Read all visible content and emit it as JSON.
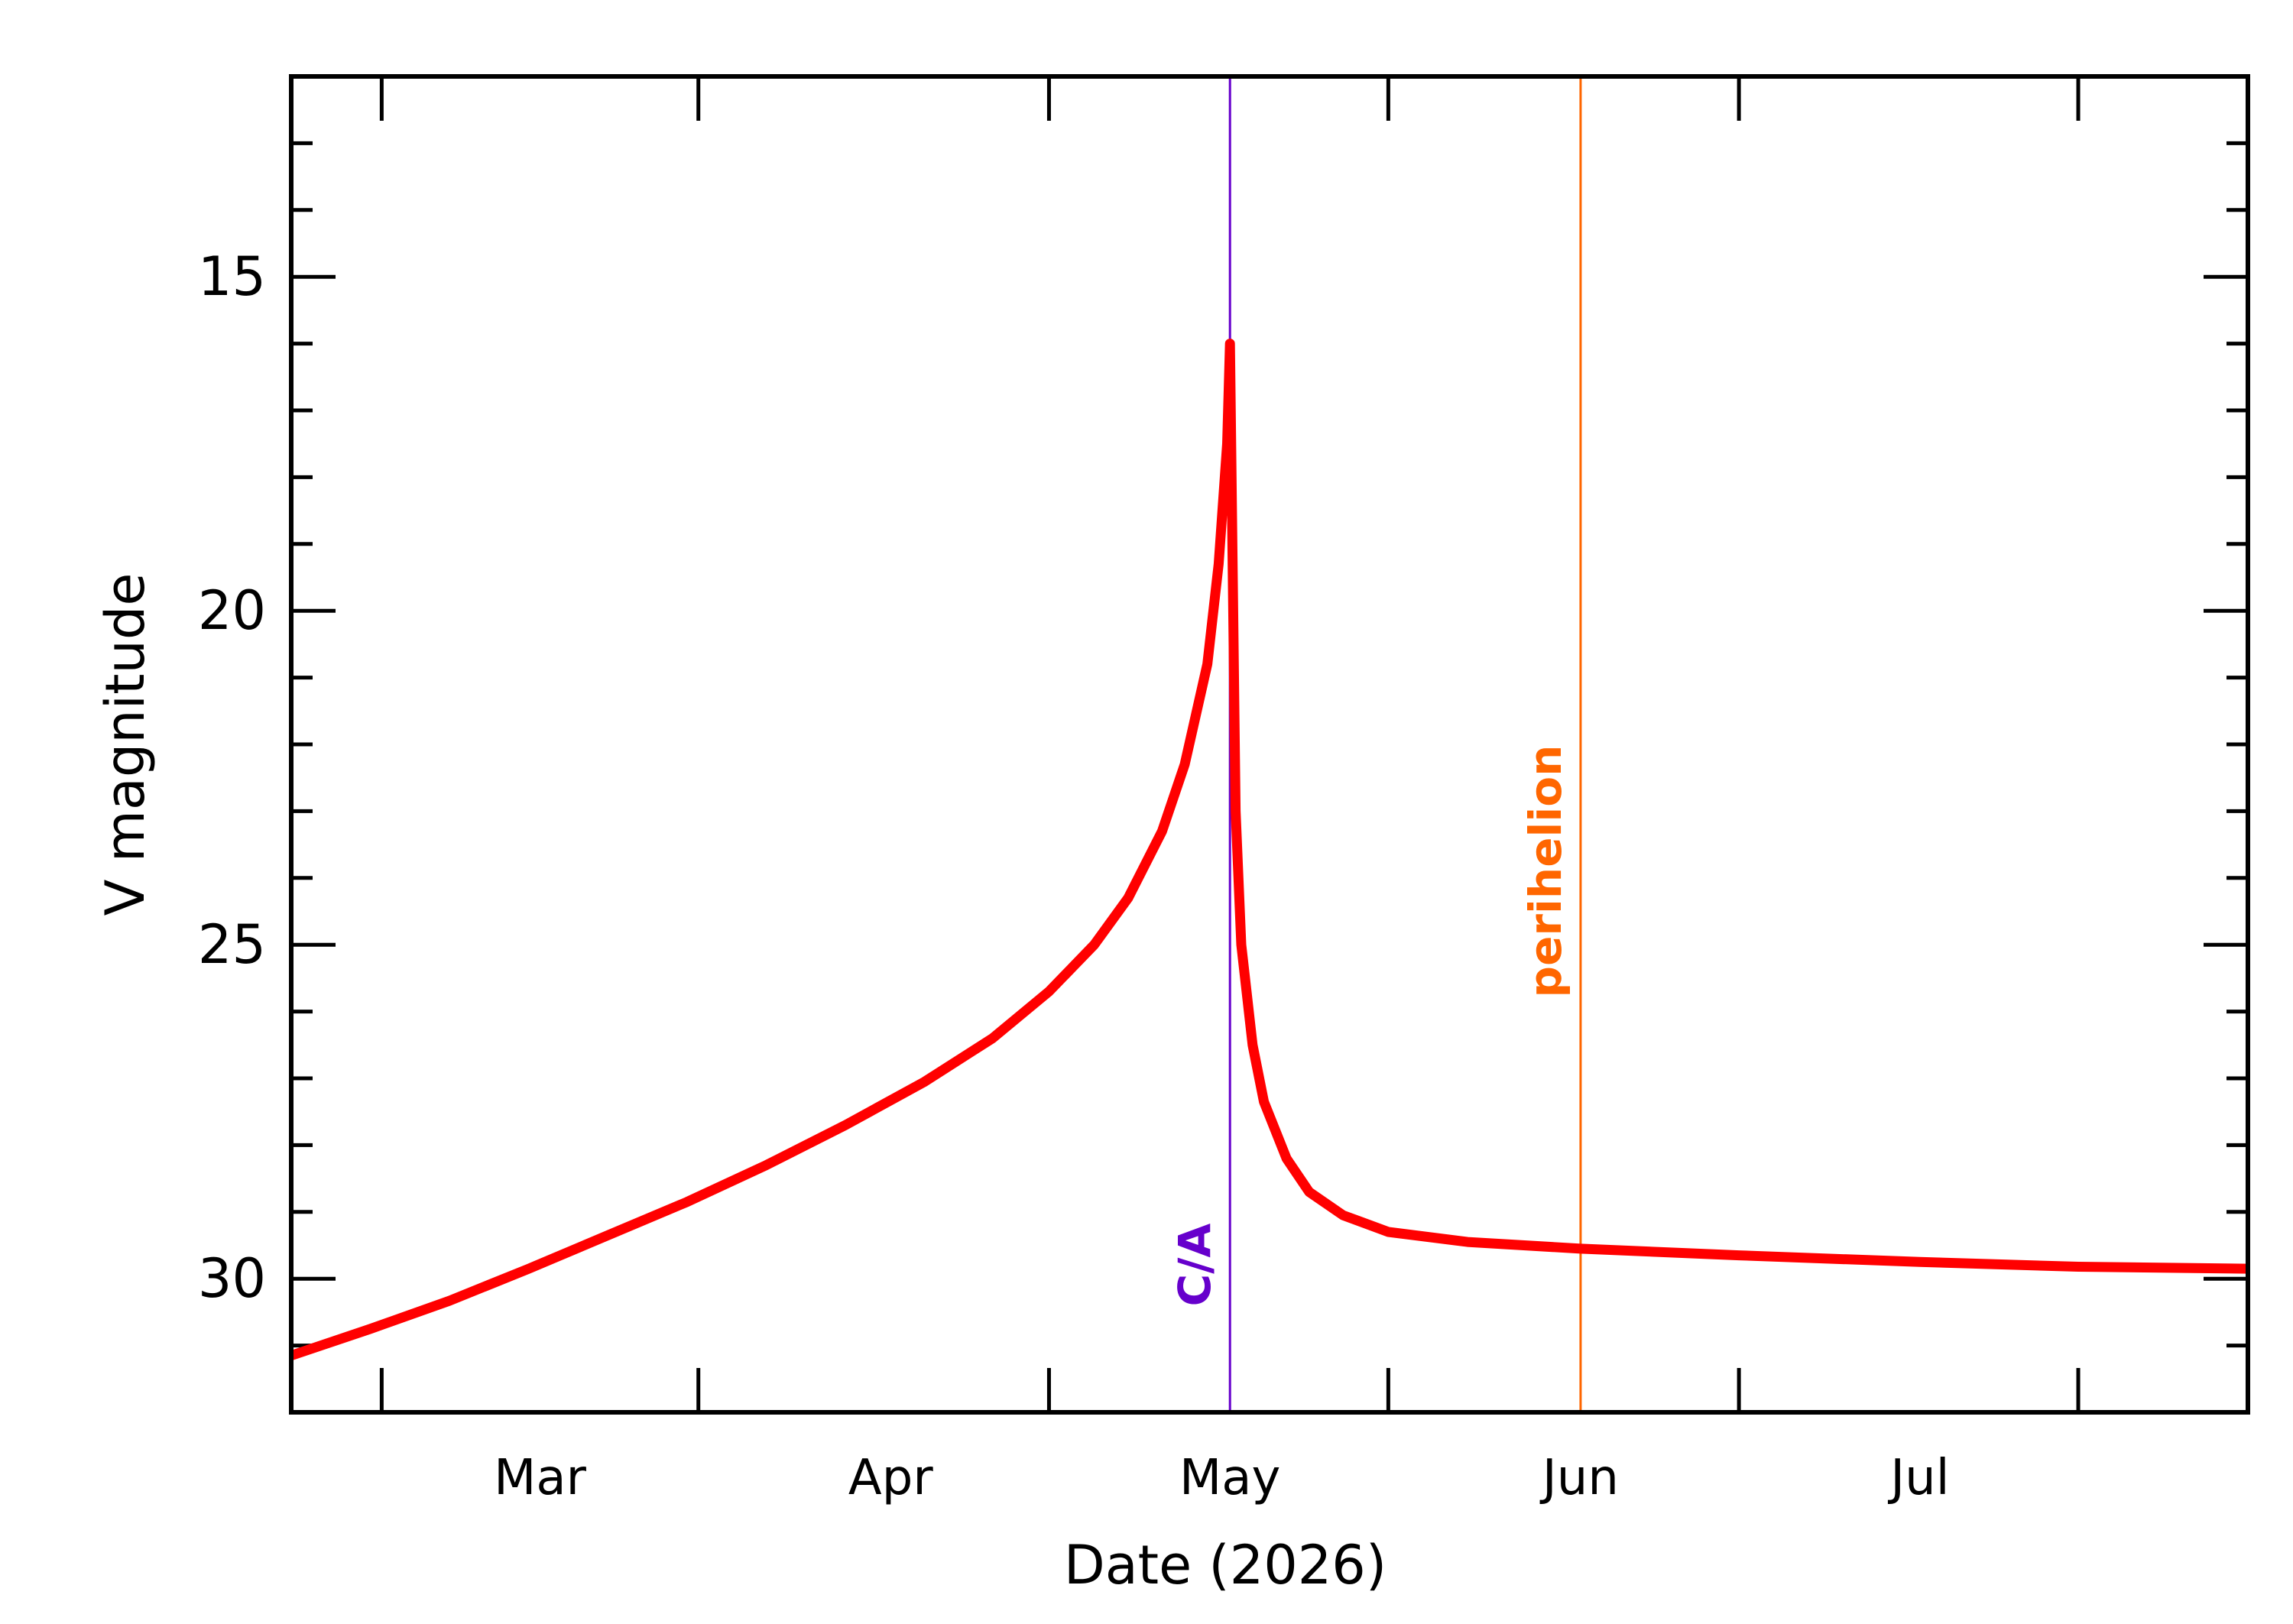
{
  "chart_data": {
    "type": "line",
    "xlabel": "Date (2026)",
    "ylabel": "V magnitude",
    "xlim": [
      "2026-02-07",
      "2026-07-30"
    ],
    "ylim": [
      32.0,
      12.0
    ],
    "y_inverted": true,
    "y_ticks": [
      15,
      20,
      25,
      30
    ],
    "month_ticks": [
      "Mar",
      "Apr",
      "May",
      "Jun",
      "Jul"
    ],
    "month_tick_dates": [
      "2026-02-15",
      "2026-03-15",
      "2026-04-15",
      "2026-05-15",
      "2026-06-15",
      "2026-07-15"
    ],
    "month_label_dates": [
      "2026-03-01",
      "2026-04-01",
      "2026-05-01",
      "2026-06-01",
      "2026-07-01"
    ],
    "series": [
      {
        "color": "#ff0000",
        "points": [
          [
            "2026-02-07",
            31.15
          ],
          [
            "2026-02-14",
            30.75
          ],
          [
            "2026-02-21",
            30.33
          ],
          [
            "2026-02-28",
            29.85
          ],
          [
            "2026-03-07",
            29.35
          ],
          [
            "2026-03-14",
            28.85
          ],
          [
            "2026-03-21",
            28.3
          ],
          [
            "2026-03-28",
            27.7
          ],
          [
            "2026-04-04",
            27.05
          ],
          [
            "2026-04-10",
            26.4
          ],
          [
            "2026-04-15",
            25.7
          ],
          [
            "2026-04-19",
            25.0
          ],
          [
            "2026-04-22",
            24.3
          ],
          [
            "2026-04-25",
            23.3
          ],
          [
            "2026-04-27",
            22.3
          ],
          [
            "2026-04-29",
            20.8
          ],
          [
            "2026-04-30",
            19.3
          ],
          [
            "2026-04-30T18:00",
            17.5
          ],
          [
            "2026-05-01",
            16.0
          ],
          [
            "2026-05-01T12:00",
            23.0
          ],
          [
            "2026-05-02",
            25.0
          ],
          [
            "2026-05-03",
            26.5
          ],
          [
            "2026-05-04",
            27.35
          ],
          [
            "2026-05-06",
            28.2
          ],
          [
            "2026-05-08",
            28.7
          ],
          [
            "2026-05-11",
            29.05
          ],
          [
            "2026-05-15",
            29.3
          ],
          [
            "2026-05-22",
            29.45
          ],
          [
            "2026-06-01",
            29.55
          ],
          [
            "2026-06-15",
            29.65
          ],
          [
            "2026-07-01",
            29.75
          ],
          [
            "2026-07-15",
            29.82
          ],
          [
            "2026-07-30",
            29.85
          ]
        ]
      }
    ],
    "markers": [
      {
        "label": "C/A",
        "date": "2026-05-01",
        "color": "#6600cc"
      },
      {
        "label": "perihelion",
        "date": "2026-06-01",
        "color": "#ff6600"
      }
    ]
  }
}
